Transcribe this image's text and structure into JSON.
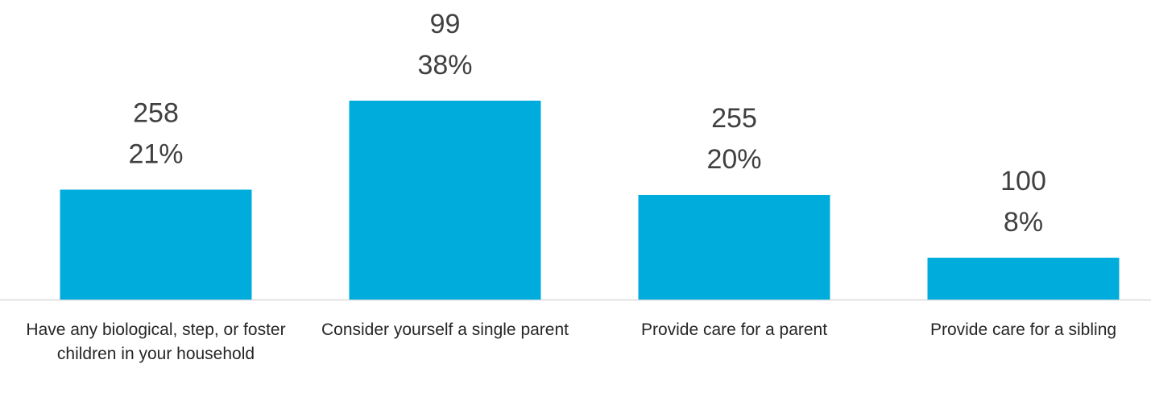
{
  "chart_data": {
    "type": "bar",
    "categories": [
      "Have any biological, step, or foster children in your household",
      "Consider yourself a single parent",
      "Provide care for a parent",
      "Provide care for a sibling"
    ],
    "counts": [
      258,
      99,
      255,
      100
    ],
    "values": [
      21,
      38,
      20,
      8
    ],
    "value_labels": [
      "21%",
      "38%",
      "20%",
      "8%"
    ],
    "color": "#00acdc"
  }
}
